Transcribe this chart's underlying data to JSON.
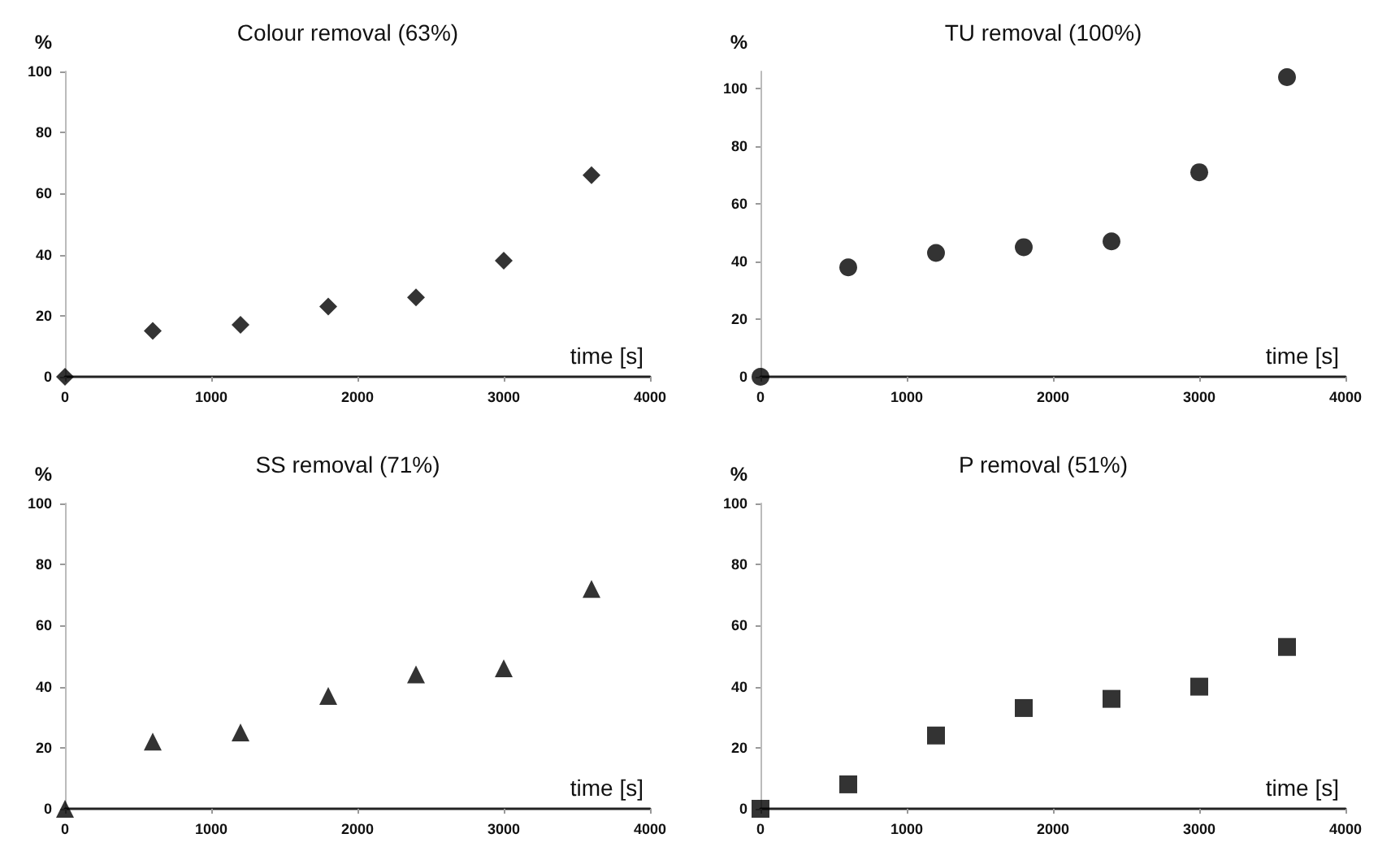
{
  "chart_data": [
    {
      "type": "scatter",
      "title": "Colour removal (63%)",
      "xlabel": "time [s]",
      "ylabel": "%",
      "x": [
        0,
        600,
        1200,
        1800,
        2400,
        3000,
        3600
      ],
      "values": [
        0,
        15,
        17,
        23,
        26,
        38,
        66
      ],
      "color": "#000000",
      "marker": "diamond",
      "xlim": [
        0,
        4000
      ],
      "xticks": [
        0,
        1000,
        2000,
        3000,
        4000
      ],
      "ylim": [
        0,
        100
      ],
      "yticks": [
        0,
        20,
        40,
        60,
        80,
        100
      ],
      "grid": false
    },
    {
      "type": "scatter",
      "title": "TU removal (100%)",
      "xlabel": "time [s]",
      "ylabel": "%",
      "x": [
        0,
        600,
        1200,
        1800,
        2400,
        3000,
        3600
      ],
      "values": [
        0,
        38,
        43,
        45,
        47,
        71,
        104
      ],
      "color": "#000000",
      "marker": "circle",
      "xlim": [
        0,
        4000
      ],
      "xticks": [
        0,
        1000,
        2000,
        3000,
        4000
      ],
      "ylim": [
        0,
        106
      ],
      "yticks": [
        0,
        20,
        40,
        60,
        80,
        100
      ],
      "grid": false
    },
    {
      "type": "scatter",
      "title": "SS removal (71%)",
      "xlabel": "time [s]",
      "ylabel": "%",
      "x": [
        0,
        600,
        1200,
        1800,
        2400,
        3000,
        3600
      ],
      "values": [
        0,
        22,
        25,
        37,
        44,
        46,
        72
      ],
      "color": "#000000",
      "marker": "triangle",
      "xlim": [
        0,
        4000
      ],
      "xticks": [
        0,
        1000,
        2000,
        3000,
        4000
      ],
      "ylim": [
        0,
        100
      ],
      "yticks": [
        0,
        20,
        40,
        60,
        80,
        100
      ],
      "grid": false
    },
    {
      "type": "scatter",
      "title": "P removal (51%)",
      "xlabel": "time [s]",
      "ylabel": "%",
      "x": [
        0,
        600,
        1200,
        1800,
        2400,
        3000,
        3600
      ],
      "values": [
        0,
        8,
        24,
        33,
        36,
        40,
        53
      ],
      "color": "#000000",
      "marker": "square",
      "xlim": [
        0,
        4000
      ],
      "xticks": [
        0,
        1000,
        2000,
        3000,
        4000
      ],
      "ylim": [
        0,
        100
      ],
      "yticks": [
        0,
        20,
        40,
        60,
        80,
        100
      ],
      "grid": false
    }
  ]
}
